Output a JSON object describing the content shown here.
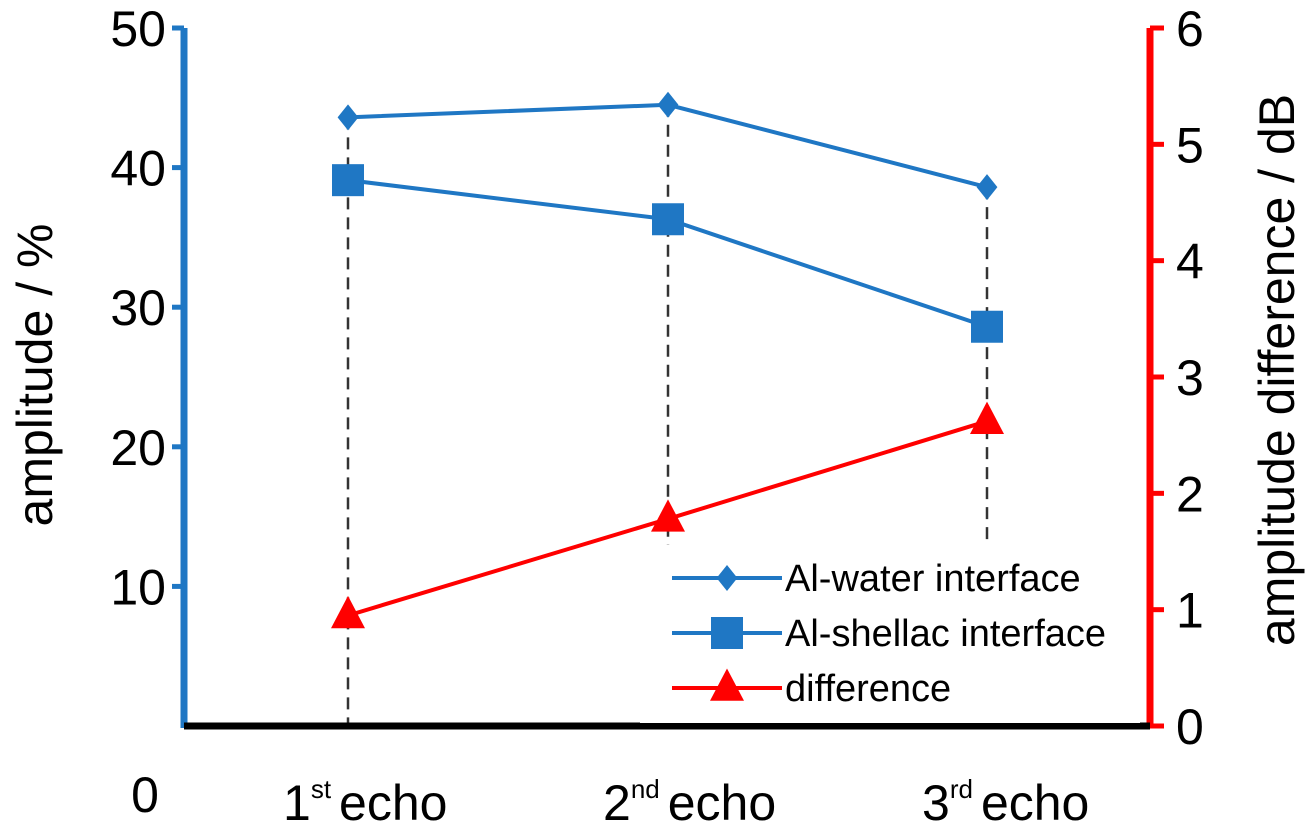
{
  "chart_data": {
    "type": "line",
    "categories": [
      {
        "num": "1",
        "sup": "st",
        "word": "echo"
      },
      {
        "num": "2",
        "sup": "nd",
        "word": "echo"
      },
      {
        "num": "3",
        "sup": "rd",
        "word": "echo"
      }
    ],
    "x_origin_label": "0",
    "left_axis": {
      "label": "amplitude / %",
      "ylim": [
        0,
        50
      ],
      "ticks": [
        10,
        20,
        30,
        40,
        50
      ],
      "color": "#1f77c4"
    },
    "right_axis": {
      "label": "amplitude difference / dB",
      "ylim": [
        0,
        6
      ],
      "ticks": [
        0,
        1,
        2,
        3,
        4,
        5,
        6
      ],
      "color": "#ff0000"
    },
    "series": [
      {
        "name": "Al-water interface",
        "axis": "left",
        "marker": "diamond",
        "color": "#1f77c4",
        "values": [
          43.6,
          44.5,
          38.6
        ]
      },
      {
        "name": "Al-shellac interface",
        "axis": "left",
        "marker": "square",
        "color": "#1f77c4",
        "values": [
          39.1,
          36.3,
          28.6
        ]
      },
      {
        "name": "difference",
        "axis": "right",
        "marker": "triangle",
        "color": "#ff0000",
        "values": [
          0.95,
          1.78,
          2.62
        ]
      }
    ],
    "guides": "dashed vertical lines at each echo",
    "grid": false,
    "legend_position": "bottom-right"
  }
}
